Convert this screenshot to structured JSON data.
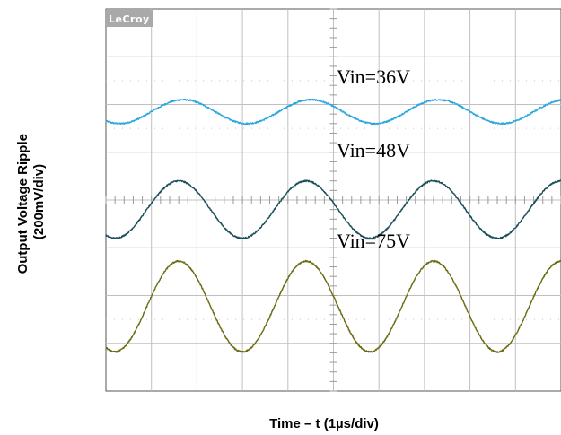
{
  "brand": "LeCroy",
  "chart_data": {
    "type": "line",
    "xlabel": "Time – t (1µs/div)",
    "ylabel_lines": [
      "Output Voltage Ripple",
      "(200mV/div)"
    ],
    "x_unit": "µs",
    "xlim": [
      0,
      10
    ],
    "ylim": [
      -4,
      4
    ],
    "y_unit": "div",
    "grid": true,
    "series": [
      {
        "name": "Vin=36V",
        "color": "#2aa6e0",
        "frequency_mhz": 0.357,
        "peak_to_peak_mv": 100,
        "center_div": 1.85,
        "first_peak_us": 1.7
      },
      {
        "name": "Vin=48V",
        "color": "#1d4f5a",
        "frequency_mhz": 0.357,
        "peak_to_peak_mv": 240,
        "center_div": -0.2,
        "first_peak_us": 1.6
      },
      {
        "name": "Vin=75V",
        "color": "#6b6b12",
        "frequency_mhz": 0.357,
        "peak_to_peak_mv": 380,
        "center_div": -2.23,
        "first_peak_us": 1.6
      }
    ]
  }
}
